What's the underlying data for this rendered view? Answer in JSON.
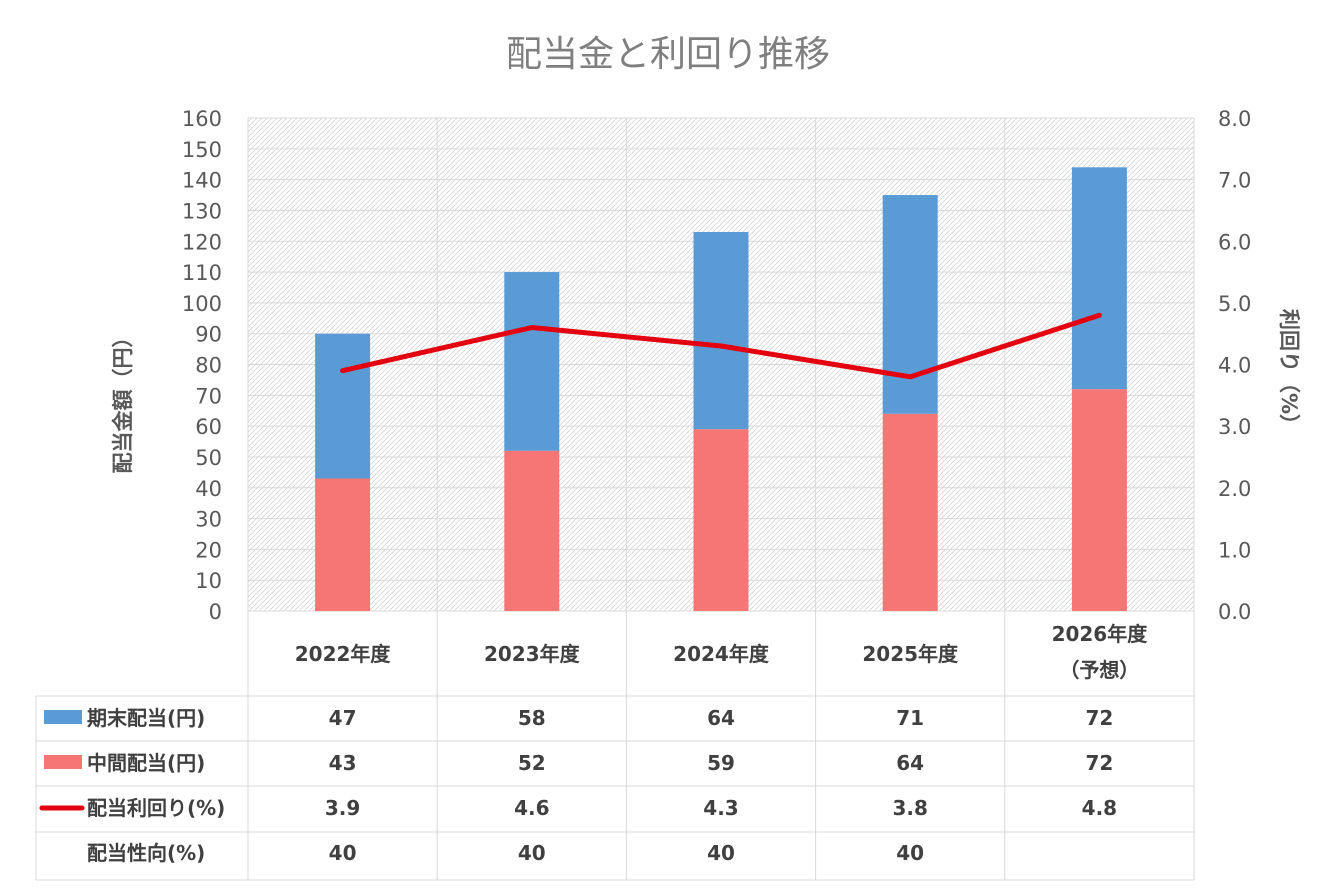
{
  "chart_data": {
    "type": "bar",
    "stacked": true,
    "title": "配当金と利回り推移",
    "ylabel": "配当金額（円）",
    "y2label": "利回り（%）",
    "ylim": [
      0,
      160
    ],
    "ytick_step": 10,
    "y2lim": [
      0,
      8.0
    ],
    "y2tick_step": 1.0,
    "grid": true,
    "categories": [
      "2022年度",
      "2023年度",
      "2024年度",
      "2025年度",
      "2026年度"
    ],
    "category_sublabels": [
      "",
      "",
      "",
      "",
      "（予想）"
    ],
    "series": [
      {
        "name": "期末配当(円)",
        "kind": "bar",
        "color": "#5b9bd5",
        "values": [
          47,
          58,
          64,
          71,
          72
        ]
      },
      {
        "name": "中間配当(円)",
        "kind": "bar",
        "color": "#f67676",
        "values": [
          43,
          52,
          59,
          64,
          72
        ]
      },
      {
        "name": "配当利回り(%)",
        "kind": "line",
        "axis": "right",
        "color": "#e3000f",
        "values": [
          3.9,
          4.6,
          4.3,
          3.8,
          4.8
        ]
      }
    ],
    "table_rows": [
      {
        "label": "期末配当(円)",
        "marker": "bar",
        "color": "#5b9bd5",
        "values": [
          "47",
          "58",
          "64",
          "71",
          "72"
        ]
      },
      {
        "label": "中間配当(円)",
        "marker": "bar",
        "color": "#f67676",
        "values": [
          "43",
          "52",
          "59",
          "64",
          "72"
        ]
      },
      {
        "label": "配当利回り(%)",
        "marker": "line",
        "color": "#e3000f",
        "values": [
          "3.9",
          "4.6",
          "4.3",
          "3.8",
          "4.8"
        ]
      },
      {
        "label": "配当性向(%)",
        "marker": "none",
        "color": "",
        "values": [
          "40",
          "40",
          "40",
          "40",
          ""
        ]
      }
    ]
  }
}
